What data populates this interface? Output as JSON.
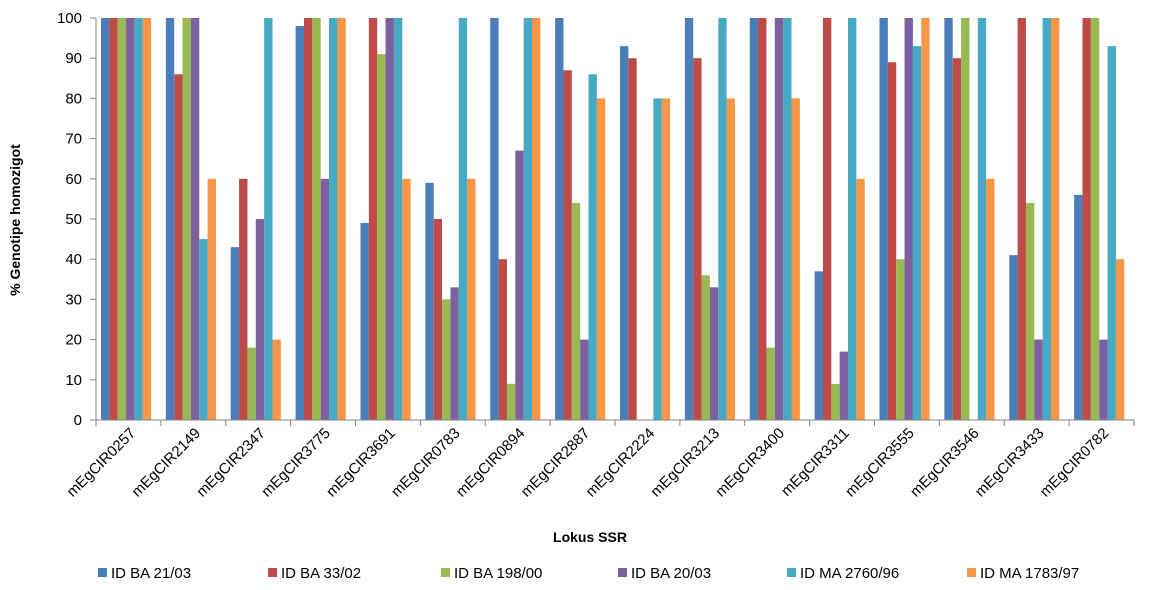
{
  "chart_data": {
    "type": "bar",
    "title": "",
    "xlabel": "Lokus  SSR",
    "ylabel": "% Genotipe homozigot",
    "ylim": [
      0,
      100
    ],
    "yticks": [
      0,
      10,
      20,
      30,
      40,
      50,
      60,
      70,
      80,
      90,
      100
    ],
    "grid": false,
    "legend_position": "bottom",
    "categories": [
      "mEgCIR0257",
      "mEgCIR2149",
      "mEgCIR2347",
      "mEgCIR3775",
      "mEgCIR3691",
      "mEgCIR0783",
      "mEgCIR0894",
      "mEgCIR2887",
      "mEgCIR2224",
      "mEgCIR3213",
      "mEgCIR3400",
      "mEgCIR3311",
      "mEgCIR3555",
      "mEgCIR3546",
      "mEgCIR3433",
      "mEgCIR0782"
    ],
    "series": [
      {
        "name": "ID BA 21/03",
        "color": "#4a7ebb",
        "values": [
          100,
          100,
          43,
          98,
          49,
          59,
          100,
          100,
          93,
          100,
          100,
          37,
          100,
          100,
          41,
          56
        ]
      },
      {
        "name": "ID BA 33/02",
        "color": "#be4b48",
        "values": [
          100,
          86,
          60,
          100,
          100,
          50,
          40,
          87,
          90,
          90,
          100,
          100,
          89,
          90,
          100,
          100
        ]
      },
      {
        "name": "ID BA 198/00",
        "color": "#98b954",
        "values": [
          100,
          100,
          18,
          100,
          91,
          30,
          9,
          54,
          0,
          36,
          18,
          9,
          40,
          100,
          54,
          100
        ]
      },
      {
        "name": "ID BA 20/03",
        "color": "#7d60a0",
        "values": [
          100,
          100,
          50,
          60,
          100,
          33,
          67,
          20,
          0,
          33,
          100,
          17,
          100,
          0,
          20,
          20
        ]
      },
      {
        "name": "ID MA 2760/96",
        "color": "#46aac5",
        "values": [
          100,
          45,
          100,
          100,
          100,
          100,
          100,
          86,
          80,
          100,
          100,
          100,
          93,
          100,
          100,
          93
        ]
      },
      {
        "name": "ID MA 1783/97",
        "color": "#f79646",
        "values": [
          100,
          60,
          20,
          100,
          60,
          60,
          100,
          80,
          80,
          80,
          80,
          60,
          100,
          60,
          100,
          40
        ]
      }
    ]
  }
}
